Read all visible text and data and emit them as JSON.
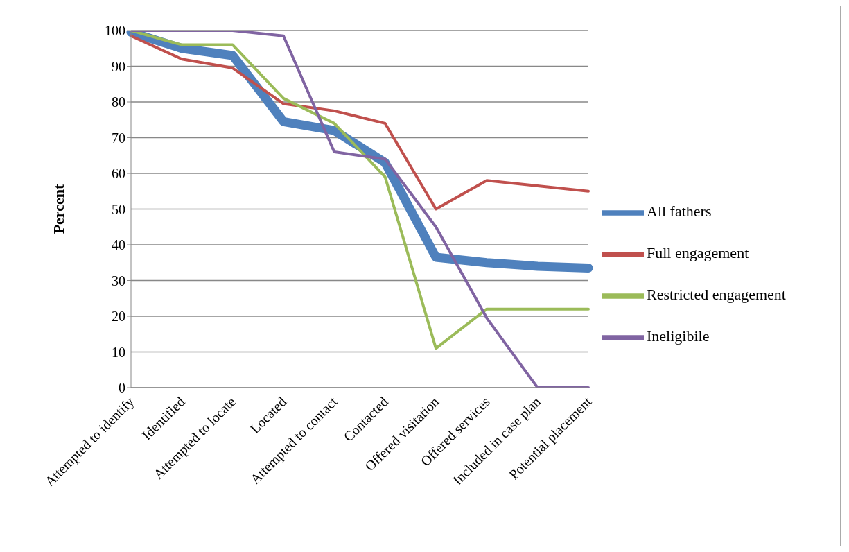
{
  "chart_data": {
    "type": "line",
    "ylabel": "Percent",
    "categories": [
      "Attempted to identify",
      "Identified",
      "Attempted to locate",
      "Located",
      "Attempted to contact",
      "Contacted",
      "Offered visitation",
      "Offered services",
      "Included in case plan",
      "Potential placement"
    ],
    "series": [
      {
        "name": "All fathers",
        "color": "#4f81bd",
        "values": [
          99.5,
          95,
          93,
          74.5,
          72,
          63,
          36.5,
          35,
          34,
          33.5
        ]
      },
      {
        "name": "Full engagement",
        "color": "#c0504d",
        "values": [
          98.5,
          92,
          89.5,
          79.5,
          77.5,
          74,
          50,
          58,
          56.5,
          55
        ]
      },
      {
        "name": "Restricted engagement",
        "color": "#9bbb59",
        "values": [
          100,
          96,
          96,
          81,
          74,
          59,
          11,
          22,
          22,
          22
        ]
      },
      {
        "name": "Ineligibile",
        "color": "#8064a2",
        "values": [
          100,
          100,
          100,
          98.5,
          66,
          64,
          45,
          19.5,
          0,
          0
        ]
      }
    ],
    "ylim": [
      0,
      100
    ],
    "yticks": [
      0,
      10,
      20,
      30,
      40,
      50,
      60,
      70,
      80,
      90,
      100
    ],
    "grid": "y",
    "legend": "right",
    "marker": "none",
    "line_style": "solid"
  }
}
